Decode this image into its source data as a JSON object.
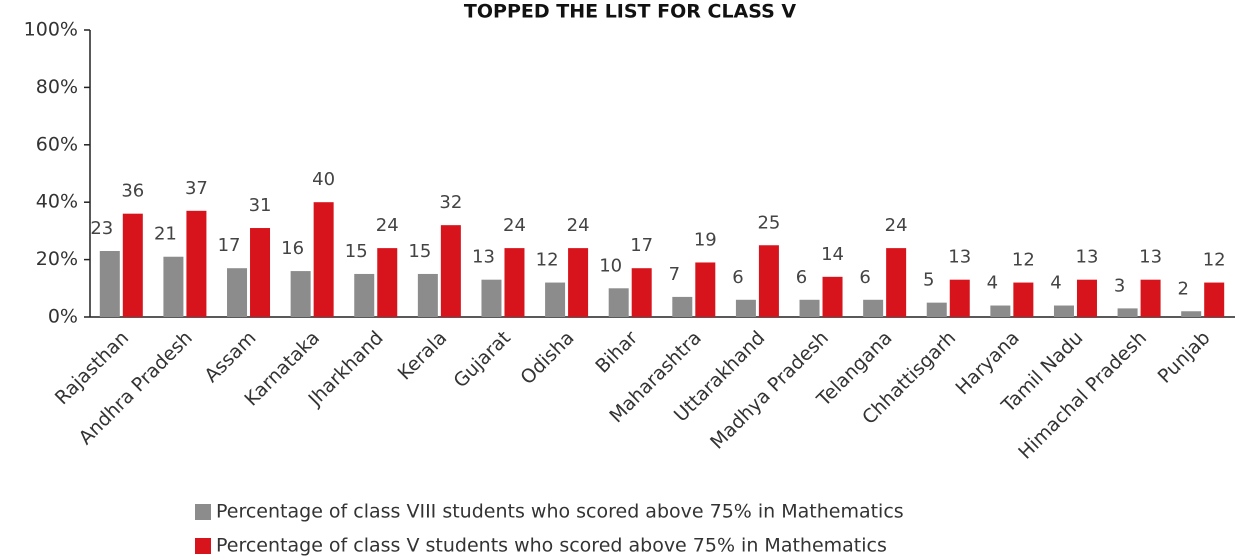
{
  "chart_data": {
    "type": "bar",
    "title": "TOPPED THE LIST FOR CLASS V",
    "categories": [
      "Rajasthan",
      "Andhra Pradesh",
      "Assam",
      "Karnataka",
      "Jharkhand",
      "Kerala",
      "Gujarat",
      "Odisha",
      "Bihar",
      "Maharashtra",
      "Uttarakhand",
      "Madhya Pradesh",
      "Telangana",
      "Chhattisgarh",
      "Haryana",
      "Tamil Nadu",
      "Himachal Pradesh",
      "Punjab"
    ],
    "series": [
      {
        "name": "Percentage of class VIII students who scored above 75% in Mathematics",
        "color": "#8c8c8c",
        "values": [
          23,
          21,
          17,
          16,
          15,
          15,
          13,
          12,
          10,
          7,
          6,
          6,
          6,
          5,
          4,
          4,
          3,
          2
        ]
      },
      {
        "name": "Percentage of class V students who scored above 75% in Mathematics",
        "color": "#d7141b",
        "values": [
          36,
          37,
          31,
          40,
          24,
          32,
          24,
          24,
          17,
          19,
          25,
          14,
          24,
          13,
          12,
          13,
          13,
          12
        ]
      }
    ],
    "ylim": [
      0,
      100
    ],
    "yticks": [
      {
        "value": 0,
        "label": "0%"
      },
      {
        "value": 20,
        "label": "20%"
      },
      {
        "value": 40,
        "label": "40%"
      },
      {
        "value": 60,
        "label": "60%"
      },
      {
        "value": 80,
        "label": "80%"
      },
      {
        "value": 100,
        "label": "100%"
      }
    ],
    "grid": false,
    "legend": "bottom"
  }
}
